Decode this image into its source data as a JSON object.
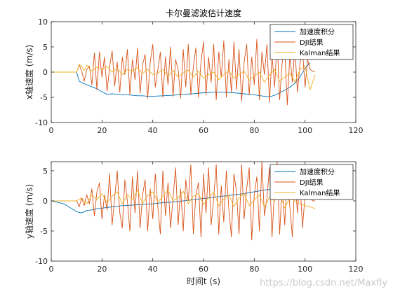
{
  "watermark": "https://blog.csdn.net/Maxfly",
  "colors": {
    "integral": "#0072BD",
    "dji": "#D95319",
    "kalman": "#EDB120",
    "axis": "#262626"
  },
  "chart_data": [
    {
      "type": "line",
      "title": "卡尔曼滤波估计速度",
      "xlabel": "",
      "ylabel": "x轴速度 (m/s)",
      "xlim": [
        0,
        120
      ],
      "ylim": [
        -10,
        10
      ],
      "xticks": [
        0,
        20,
        40,
        60,
        80,
        100,
        120
      ],
      "yticks": [
        -10,
        -5,
        0,
        5,
        10
      ],
      "legend_position": "top-right",
      "series": [
        {
          "name": "加速度积分",
          "color": "#0072BD",
          "x": [
            0,
            10,
            11,
            12,
            14,
            16,
            18,
            20,
            22,
            24,
            26,
            28,
            30,
            32,
            34,
            36,
            38,
            40,
            44,
            48,
            52,
            56,
            60,
            64,
            68,
            72,
            76,
            80,
            84,
            86,
            88,
            90,
            92,
            94,
            96,
            98,
            100,
            102
          ],
          "y": [
            0,
            0,
            -1.8,
            -2.1,
            -2.5,
            -2.9,
            -3.3,
            -3.9,
            -4.4,
            -4.3,
            -4.4,
            -4.5,
            -4.5,
            -4.6,
            -4.7,
            -4.7,
            -4.8,
            -4.8,
            -4.7,
            -4.6,
            -4.4,
            -4.3,
            -4.1,
            -4.0,
            -4.0,
            -4.1,
            -4.3,
            -4.5,
            -4.8,
            -4.9,
            -4.6,
            -4.1,
            -3.6,
            -3.0,
            -2.2,
            -1.0,
            0.8,
            1.8
          ]
        },
        {
          "name": "DJI结果",
          "color": "#D95319",
          "x": [
            0,
            10,
            11,
            12,
            13,
            14,
            15,
            16,
            17,
            18,
            19,
            20,
            21,
            22,
            23,
            24,
            25,
            26,
            27,
            28,
            29,
            30,
            31,
            32,
            33,
            34,
            35,
            36,
            37,
            38,
            39,
            40,
            41,
            42,
            43,
            44,
            45,
            46,
            47,
            48,
            49,
            50,
            51,
            52,
            53,
            54,
            55,
            56,
            57,
            58,
            59,
            60,
            61,
            62,
            63,
            64,
            65,
            66,
            67,
            68,
            69,
            70,
            71,
            72,
            73,
            74,
            75,
            76,
            77,
            78,
            79,
            80,
            81,
            82,
            83,
            84,
            85,
            86,
            87,
            88,
            89,
            90,
            91,
            92,
            93,
            94,
            95,
            96,
            97,
            98,
            99,
            100,
            101,
            102,
            103,
            104
          ],
          "y": [
            0,
            0,
            1.5,
            0.2,
            -1.8,
            0.5,
            1.2,
            -2.5,
            3.8,
            -3.5,
            4.0,
            -1.0,
            3.0,
            -3.8,
            1.0,
            4.2,
            -2.8,
            2.0,
            -4.0,
            3.0,
            -0.5,
            4.5,
            -4.5,
            2.5,
            -1.5,
            4.8,
            -4.2,
            1.5,
            3.5,
            -5.2,
            2.0,
            5.5,
            -3.0,
            0.5,
            4.0,
            -5.0,
            3.0,
            -2.5,
            5.0,
            -4.8,
            2.5,
            0.5,
            -5.2,
            4.5,
            -3.0,
            5.5,
            -4.5,
            1.0,
            4.8,
            -5.0,
            2.0,
            6.0,
            -4.5,
            3.0,
            -2.0,
            5.5,
            -5.5,
            4.0,
            -1.0,
            6.2,
            -5.0,
            2.5,
            -4.0,
            6.0,
            -3.5,
            4.5,
            -5.8,
            2.0,
            5.5,
            -4.5,
            3.0,
            -2.5,
            6.5,
            -5.5,
            4.0,
            -0.5,
            5.5,
            -6.0,
            3.5,
            -3.0,
            6.5,
            -5.5,
            2.0,
            4.5,
            -6.5,
            3.5,
            -2.0,
            5.0,
            -4.0,
            1.5,
            4.5,
            -3.0,
            2.5,
            0.5,
            0.2,
            0
          ]
        },
        {
          "name": "Kalman结果",
          "color": "#EDB120",
          "x": [
            0,
            10,
            11,
            12,
            13,
            14,
            15,
            16,
            18,
            20,
            22,
            24,
            26,
            28,
            30,
            32,
            34,
            36,
            38,
            40,
            42,
            44,
            46,
            48,
            50,
            52,
            54,
            56,
            58,
            60,
            62,
            64,
            66,
            68,
            70,
            72,
            74,
            76,
            78,
            80,
            82,
            84,
            86,
            88,
            90,
            92,
            94,
            96,
            98,
            100,
            102,
            104
          ],
          "y": [
            0,
            0,
            1.5,
            1.2,
            0.3,
            1.4,
            0.8,
            0.2,
            1.0,
            0.5,
            1.2,
            0.0,
            0.8,
            -0.5,
            0.5,
            0.2,
            0.9,
            -0.3,
            0.6,
            -0.5,
            -0.2,
            0.5,
            -0.8,
            0.3,
            -1.0,
            -0.2,
            0.4,
            -1.0,
            0.2,
            -1.2,
            -0.5,
            0.0,
            -1.5,
            -0.5,
            0.3,
            -1.2,
            -0.5,
            0.2,
            -1.6,
            -0.8,
            0.0,
            -2.0,
            -0.6,
            0.5,
            -1.8,
            -1.0,
            -0.2,
            -2.0,
            0.5,
            1.2,
            -3.5,
            -0.5
          ]
        }
      ]
    },
    {
      "type": "line",
      "title": "",
      "xlabel": "时间t (s)",
      "ylabel": "y轴速度 (m/s)",
      "xlim": [
        0,
        120
      ],
      "ylim": [
        -10,
        6.5
      ],
      "xticks": [
        0,
        20,
        40,
        60,
        80,
        100,
        120
      ],
      "yticks": [
        -10,
        -5,
        0,
        5
      ],
      "legend_position": "top-right",
      "series": [
        {
          "name": "加速度积分",
          "color": "#0072BD",
          "x": [
            0,
            5,
            10,
            12,
            14,
            16,
            18,
            20,
            24,
            28,
            32,
            36,
            40,
            44,
            48,
            52,
            56,
            60,
            64,
            68,
            72,
            76,
            80,
            84,
            88,
            92,
            96,
            100,
            104
          ],
          "y": [
            0,
            -0.5,
            -1.8,
            -2.0,
            -1.6,
            -1.5,
            -1.3,
            -1.2,
            -1.0,
            -0.8,
            -0.7,
            -0.6,
            -0.5,
            -0.3,
            -0.2,
            0.0,
            0.2,
            0.4,
            0.6,
            0.8,
            1.0,
            1.2,
            1.5,
            1.8,
            2.0,
            1.9,
            2.0,
            2.1,
            2.1
          ]
        },
        {
          "name": "DJI结果",
          "color": "#D95319",
          "x": [
            0,
            10,
            11,
            12,
            13,
            14,
            15,
            16,
            17,
            18,
            19,
            20,
            21,
            22,
            23,
            24,
            25,
            26,
            27,
            28,
            29,
            30,
            31,
            32,
            33,
            34,
            35,
            36,
            37,
            38,
            39,
            40,
            41,
            42,
            43,
            44,
            45,
            46,
            47,
            48,
            49,
            50,
            51,
            52,
            53,
            54,
            55,
            56,
            57,
            58,
            59,
            60,
            61,
            62,
            63,
            64,
            65,
            66,
            67,
            68,
            69,
            70,
            71,
            72,
            73,
            74,
            75,
            76,
            77,
            78,
            79,
            80,
            81,
            82,
            83,
            84,
            85,
            86,
            87,
            88,
            89,
            90,
            91,
            92,
            93,
            94,
            95,
            96,
            97,
            98,
            99,
            100,
            101,
            102,
            103,
            104
          ],
          "y": [
            0,
            0,
            -1.0,
            0.5,
            -0.8,
            1.0,
            -0.5,
            2.0,
            -2.5,
            1.5,
            3.0,
            -3.0,
            1.0,
            -1.5,
            4.5,
            -4.0,
            0.5,
            5.0,
            -2.0,
            -4.5,
            3.5,
            0.0,
            -5.0,
            4.0,
            -2.0,
            5.0,
            -4.5,
            1.0,
            3.5,
            -5.0,
            2.0,
            -3.0,
            4.5,
            -1.0,
            -5.5,
            5.0,
            -2.5,
            3.0,
            -4.5,
            0.5,
            5.5,
            -4.0,
            2.0,
            -5.0,
            3.5,
            0.0,
            6.0,
            -5.5,
            1.0,
            3.0,
            -6.0,
            4.5,
            -2.0,
            5.5,
            -4.0,
            0.5,
            6.0,
            -5.5,
            2.5,
            -3.5,
            5.0,
            -1.5,
            -6.0,
            4.5,
            1.5,
            -5.5,
            6.0,
            -3.0,
            2.0,
            5.5,
            -6.5,
            1.0,
            4.0,
            -5.0,
            6.5,
            -2.5,
            0.5,
            5.5,
            -6.0,
            2.0,
            6.5,
            -5.5,
            3.0,
            -4.0,
            5.0,
            -1.0,
            -6.0,
            4.0,
            -2.0,
            3.5,
            -4.5,
            1.0,
            3.0,
            0.5,
            0.0,
            0.0
          ]
        },
        {
          "name": "Kalman结果",
          "color": "#EDB120",
          "x": [
            0,
            10,
            12,
            14,
            16,
            18,
            20,
            22,
            24,
            26,
            28,
            30,
            32,
            34,
            36,
            38,
            40,
            42,
            44,
            46,
            48,
            50,
            52,
            54,
            56,
            58,
            60,
            62,
            64,
            66,
            68,
            70,
            72,
            74,
            76,
            78,
            80,
            82,
            84,
            86,
            88,
            90,
            92,
            94,
            96,
            98,
            100,
            102,
            104
          ],
          "y": [
            0,
            0,
            0.5,
            -0.5,
            1.0,
            0.2,
            1.2,
            -0.3,
            0.8,
            1.5,
            -0.5,
            1.0,
            0.2,
            1.8,
            -0.4,
            0.9,
            1.5,
            -0.2,
            0.7,
            1.8,
            0.0,
            0.5,
            1.6,
            -0.5,
            0.8,
            1.2,
            -0.6,
            0.5,
            1.5,
            -0.8,
            0.3,
            1.0,
            -1.0,
            0.5,
            1.2,
            -0.8,
            0.2,
            1.0,
            -1.0,
            0.6,
            0.0,
            1.2,
            -1.2,
            0.5,
            0.0,
            -0.5,
            -0.8,
            -1.0,
            -1.3
          ]
        }
      ]
    }
  ]
}
